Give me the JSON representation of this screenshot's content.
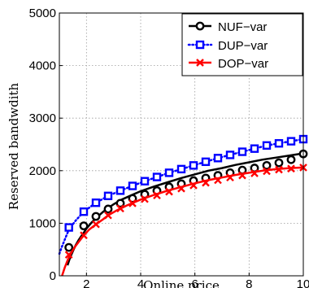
{
  "chart_data": {
    "type": "line",
    "xlabel": "Online price",
    "ylabel": "Reserved bandwdith",
    "xlim": [
      1,
      10
    ],
    "ylim": [
      0,
      5000
    ],
    "xticks": [
      "2",
      "4",
      "6",
      "8",
      "10"
    ],
    "yticks": [
      "0",
      "1000",
      "2000",
      "3000",
      "4000",
      "5000"
    ],
    "grid": true,
    "legend_position": "top-right",
    "series": [
      {
        "name": "NUF−var",
        "color": "#000000",
        "line_style": "solid",
        "marker": "circle",
        "curve": {
          "x": [
            1.3,
            1.4,
            1.5,
            1.6,
            1.7,
            1.8,
            1.9,
            2,
            2.2,
            2.4,
            2.6,
            2.8,
            3,
            3.3,
            3.6,
            4,
            4.5,
            5,
            5.5,
            6,
            6.5,
            7,
            7.5,
            8,
            8.5,
            9,
            9.5,
            10
          ],
          "y": [
            200,
            350,
            470,
            580,
            670,
            750,
            820,
            900,
            1020,
            1120,
            1210,
            1290,
            1360,
            1450,
            1520,
            1610,
            1700,
            1780,
            1860,
            1930,
            2000,
            2050,
            2110,
            2160,
            2210,
            2250,
            2290,
            2330
          ]
        },
        "markers": {
          "x": [
            1.35,
            1.9,
            2.35,
            2.8,
            3.25,
            3.7,
            4.15,
            4.6,
            5.05,
            5.5,
            5.95,
            6.4,
            6.85,
            7.3,
            7.75,
            8.2,
            8.65,
            9.1,
            9.55,
            10
          ],
          "y": [
            540,
            950,
            1130,
            1270,
            1380,
            1470,
            1550,
            1620,
            1690,
            1750,
            1810,
            1860,
            1910,
            1960,
            2010,
            2050,
            2100,
            2150,
            2210,
            2320
          ]
        }
      },
      {
        "name": "DUP−var",
        "color": "#0000ff",
        "line_style": "dotted",
        "marker": "square",
        "curve": {
          "x": [
            1,
            1.1,
            1.2,
            1.35,
            1.6,
            1.9,
            2.35,
            2.8,
            3.25,
            3.7,
            4.15,
            4.6,
            5.05,
            5.5,
            5.95,
            6.4,
            6.85,
            7.3,
            7.75,
            8.2,
            8.65,
            9.1,
            9.55,
            10
          ],
          "y": [
            420,
            560,
            690,
            880,
            1050,
            1220,
            1390,
            1520,
            1620,
            1710,
            1800,
            1880,
            1960,
            2030,
            2100,
            2170,
            2240,
            2300,
            2360,
            2420,
            2480,
            2520,
            2560,
            2600
          ]
        },
        "markers": {
          "x": [
            1.35,
            1.9,
            2.35,
            2.8,
            3.25,
            3.7,
            4.15,
            4.6,
            5.05,
            5.5,
            5.95,
            6.4,
            6.85,
            7.3,
            7.75,
            8.2,
            8.65,
            9.1,
            9.55,
            10
          ],
          "y": [
            920,
            1220,
            1390,
            1520,
            1620,
            1710,
            1800,
            1880,
            1960,
            2030,
            2100,
            2170,
            2240,
            2300,
            2360,
            2420,
            2480,
            2520,
            2560,
            2600
          ]
        }
      },
      {
        "name": "DOP−var",
        "color": "#ff0000",
        "line_style": "solid",
        "marker": "x",
        "curve": {
          "x": [
            1.1,
            1.15,
            1.2,
            1.3,
            1.4,
            1.5,
            1.6,
            1.75,
            1.9,
            2.1,
            2.35,
            2.6,
            2.8,
            3.1,
            3.5,
            4,
            4.5,
            5,
            5.5,
            6,
            6.5,
            7,
            7.5,
            8,
            8.5,
            9,
            9.5,
            10
          ],
          "y": [
            0,
            80,
            160,
            290,
            400,
            490,
            570,
            670,
            770,
            880,
            980,
            1070,
            1150,
            1240,
            1340,
            1450,
            1540,
            1620,
            1690,
            1760,
            1820,
            1870,
            1920,
            1960,
            2000,
            2030,
            2050,
            2060
          ]
        },
        "markers": {
          "x": [
            1.35,
            1.9,
            2.35,
            2.8,
            3.25,
            3.7,
            4.15,
            4.6,
            5.05,
            5.5,
            5.95,
            6.4,
            6.85,
            7.3,
            7.75,
            8.2,
            8.65,
            9.1,
            9.55,
            10
          ],
          "y": [
            400,
            770,
            980,
            1150,
            1280,
            1380,
            1460,
            1530,
            1600,
            1660,
            1720,
            1770,
            1820,
            1870,
            1910,
            1950,
            1990,
            2020,
            2040,
            2060
          ]
        }
      }
    ]
  }
}
